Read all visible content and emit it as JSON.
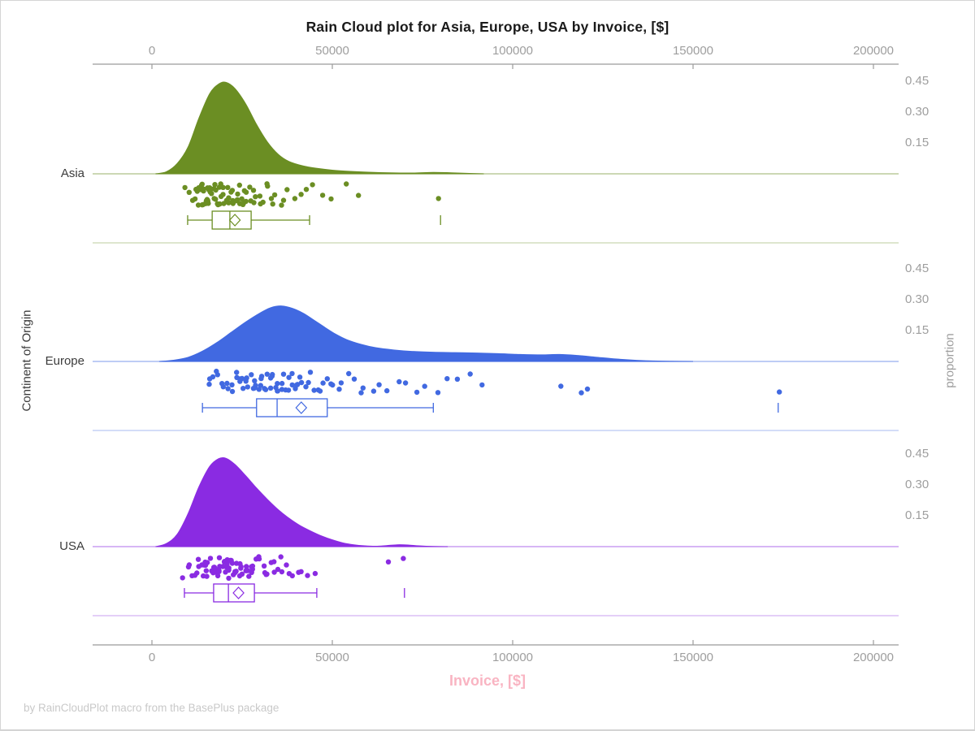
{
  "title": "Rain Cloud plot for Asia, Europe, USA by Invoice, [$]",
  "footer": "by RainCloudPlot macro from the BasePlus package",
  "x_axis": {
    "label": "Invoice, [$]",
    "ticks": [
      "0",
      "50000",
      "100000",
      "150000",
      "200000"
    ],
    "tick_values_k": [
      0,
      50,
      100,
      150,
      200
    ]
  },
  "y_axis_left": {
    "label": "Continent of Origin",
    "categories": [
      "Asia",
      "Europe",
      "USA"
    ]
  },
  "y_axis_right": {
    "label": "proportion",
    "ticks": [
      "0.45",
      "0.30",
      "0.15"
    ],
    "tick_values": [
      0.45,
      0.3,
      0.15
    ],
    "repeated_for_each_panel": true
  },
  "colors": {
    "asia": "#6B8E23",
    "europe": "#4169E1",
    "usa": "#8A2BE2",
    "x_label_pink": "#F9B4C2",
    "axis_gray": "#9B9B9B",
    "tick_label_gray": "#9E9E9E",
    "category_label": "#3C3C3C",
    "footer_gray": "#C9C9C9",
    "title_color": "#1A1A1A",
    "figure_border": "#D4D4D4"
  },
  "chart_data": {
    "type": "raincloud (half-violin density + jittered strip + boxplot per group)",
    "x_field": "Invoice, [$]",
    "group_field": "Continent of Origin",
    "x_axis_ticks": [
      0,
      50000,
      100000,
      150000,
      200000
    ],
    "proportion_axis_ticks": [
      0.15,
      0.3,
      0.45
    ],
    "values_unit": "USD, numeric values stored in thousands of dollars",
    "groups": [
      {
        "name": "Asia",
        "color": "#6B8E23",
        "density_k_prop": [
          [
            1,
            0
          ],
          [
            4,
            0.01
          ],
          [
            7,
            0.05
          ],
          [
            10,
            0.13
          ],
          [
            13,
            0.27
          ],
          [
            16,
            0.39
          ],
          [
            18.5,
            0.437
          ],
          [
            20.5,
            0.445
          ],
          [
            23,
            0.415
          ],
          [
            26,
            0.34
          ],
          [
            29,
            0.24
          ],
          [
            32,
            0.155
          ],
          [
            35,
            0.095
          ],
          [
            38,
            0.06
          ],
          [
            42,
            0.038
          ],
          [
            46,
            0.026
          ],
          [
            50,
            0.018
          ],
          [
            55,
            0.012
          ],
          [
            60,
            0.008
          ],
          [
            66,
            0.005
          ],
          [
            72,
            0.004
          ],
          [
            78,
            0.007
          ],
          [
            83,
            0.005
          ],
          [
            88,
            0.002
          ],
          [
            92,
            0
          ]
        ],
        "strip_points_k": [
          9.5,
          10.3,
          10.9,
          11.8,
          12.1,
          12.4,
          12.7,
          13.0,
          13.2,
          13.4,
          13.6,
          13.8,
          14.0,
          14.2,
          14.4,
          14.6,
          14.8,
          15.0,
          15.2,
          15.4,
          15.6,
          15.8,
          16.0,
          16.2,
          16.4,
          16.6,
          16.8,
          17.0,
          17.2,
          17.4,
          17.6,
          17.8,
          18.0,
          18.2,
          18.4,
          18.6,
          18.8,
          19.0,
          19.2,
          19.4,
          19.6,
          19.8,
          20.0,
          20.2,
          20.5,
          20.8,
          21.1,
          21.4,
          21.7,
          22.0,
          22.3,
          22.6,
          22.9,
          23.2,
          23.5,
          23.8,
          24.1,
          24.4,
          24.7,
          25.0,
          25.4,
          25.8,
          26.2,
          26.6,
          27.0,
          27.5,
          28.0,
          28.5,
          29.0,
          29.6,
          30.2,
          30.8,
          31.4,
          32.0,
          32.8,
          33.6,
          34.5,
          35.5,
          36.5,
          37.8,
          39.2,
          40.8,
          42.5,
          44.5,
          47.0,
          50.0,
          53.5,
          57.0,
          80.0
        ],
        "box_k": {
          "whisker_low": 9.9,
          "q1": 16.7,
          "median": 21.6,
          "q3": 27.5,
          "whisker_high": 43.7,
          "mean": 23.0,
          "outliers": [
            80.0
          ]
        }
      },
      {
        "name": "Europe",
        "color": "#4169E1",
        "density_k_prop": [
          [
            2,
            0
          ],
          [
            6,
            0.006
          ],
          [
            10,
            0.02
          ],
          [
            14,
            0.05
          ],
          [
            18,
            0.092
          ],
          [
            22,
            0.142
          ],
          [
            26,
            0.192
          ],
          [
            30,
            0.236
          ],
          [
            33,
            0.262
          ],
          [
            36,
            0.27
          ],
          [
            39,
            0.258
          ],
          [
            42,
            0.234
          ],
          [
            45,
            0.2
          ],
          [
            48,
            0.165
          ],
          [
            51,
            0.132
          ],
          [
            54,
            0.106
          ],
          [
            58,
            0.083
          ],
          [
            62,
            0.067
          ],
          [
            67,
            0.056
          ],
          [
            72,
            0.049
          ],
          [
            78,
            0.045
          ],
          [
            84,
            0.043
          ],
          [
            90,
            0.041
          ],
          [
            96,
            0.038
          ],
          [
            102,
            0.034
          ],
          [
            108,
            0.032
          ],
          [
            113,
            0.034
          ],
          [
            118,
            0.029
          ],
          [
            123,
            0.021
          ],
          [
            128,
            0.013
          ],
          [
            133,
            0.007
          ],
          [
            138,
            0.003
          ],
          [
            144,
            0.001
          ],
          [
            150,
            0
          ]
        ],
        "strip_points_k": [
          15.5,
          16.2,
          17.0,
          17.8,
          18.5,
          19.2,
          19.9,
          20.6,
          21.2,
          21.8,
          22.4,
          23.0,
          23.5,
          24.0,
          24.5,
          25.0,
          25.5,
          26.0,
          26.5,
          27.0,
          27.5,
          28.0,
          28.4,
          28.8,
          29.2,
          29.6,
          30.0,
          30.4,
          30.8,
          31.2,
          31.6,
          32.0,
          32.4,
          32.8,
          33.2,
          33.6,
          34.0,
          34.4,
          34.8,
          35.2,
          35.6,
          36.0,
          36.5,
          37.0,
          37.5,
          38.0,
          38.5,
          39.0,
          39.5,
          40.0,
          40.6,
          41.2,
          41.8,
          42.5,
          43.2,
          44.0,
          44.8,
          45.6,
          46.5,
          47.5,
          48.5,
          49.5,
          50.6,
          51.8,
          53.0,
          54.5,
          56.0,
          57.5,
          59.0,
          61.0,
          63.0,
          65.5,
          68.0,
          70.5,
          73.0,
          76.0,
          79.0,
          82.0,
          85.0,
          88.5,
          92.0,
          113.5,
          118.5,
          120.5,
          174.0
        ],
        "box_k": {
          "whisker_low": 14.0,
          "q1": 29.0,
          "median": 34.7,
          "q3": 48.6,
          "whisker_high": 78.0,
          "mean": 41.4,
          "outliers": [
            173.6
          ]
        }
      },
      {
        "name": "USA",
        "color": "#8A2BE2",
        "density_k_prop": [
          [
            1,
            0
          ],
          [
            4,
            0.015
          ],
          [
            7,
            0.06
          ],
          [
            10,
            0.16
          ],
          [
            13,
            0.29
          ],
          [
            16,
            0.39
          ],
          [
            18.5,
            0.428
          ],
          [
            20.5,
            0.43
          ],
          [
            23,
            0.4
          ],
          [
            26,
            0.345
          ],
          [
            29,
            0.285
          ],
          [
            32,
            0.23
          ],
          [
            35,
            0.18
          ],
          [
            38,
            0.138
          ],
          [
            41,
            0.103
          ],
          [
            44,
            0.076
          ],
          [
            47,
            0.052
          ],
          [
            50,
            0.033
          ],
          [
            53,
            0.018
          ],
          [
            56,
            0.009
          ],
          [
            59,
            0.004
          ],
          [
            62,
            0.002
          ],
          [
            65,
            0.005
          ],
          [
            68,
            0.009
          ],
          [
            71,
            0.008
          ],
          [
            74,
            0.004
          ],
          [
            78,
            0.001
          ],
          [
            82,
            0
          ]
        ],
        "strip_points_k": [
          9.0,
          10.0,
          10.8,
          11.5,
          12.0,
          12.4,
          12.8,
          13.2,
          13.6,
          14.0,
          14.3,
          14.6,
          14.9,
          15.2,
          15.5,
          15.8,
          16.1,
          16.4,
          16.7,
          16.9,
          17.0,
          17.3,
          17.6,
          17.9,
          18.2,
          18.4,
          18.5,
          18.8,
          19.1,
          19.4,
          19.7,
          19.9,
          20.0,
          20.3,
          20.6,
          20.9,
          21.2,
          21.4,
          21.5,
          21.8,
          22.1,
          22.4,
          22.7,
          22.9,
          23.0,
          23.4,
          23.8,
          24.2,
          24.4,
          24.6,
          25.0,
          25.4,
          25.8,
          26.0,
          26.2,
          26.7,
          27.2,
          27.7,
          28.0,
          28.2,
          28.8,
          29.4,
          30.0,
          30.7,
          31.0,
          31.4,
          32.1,
          32.8,
          33.6,
          34.0,
          34.4,
          35.2,
          36.1,
          37.0,
          38.0,
          39.0,
          40.2,
          41.5,
          43.0,
          45.5,
          66.0,
          70.0
        ],
        "box_k": {
          "whisker_low": 9.0,
          "q1": 17.1,
          "median": 21.2,
          "q3": 28.4,
          "whisker_high": 45.7,
          "mean": 24.0,
          "outliers": [
            70.0
          ]
        }
      }
    ]
  }
}
